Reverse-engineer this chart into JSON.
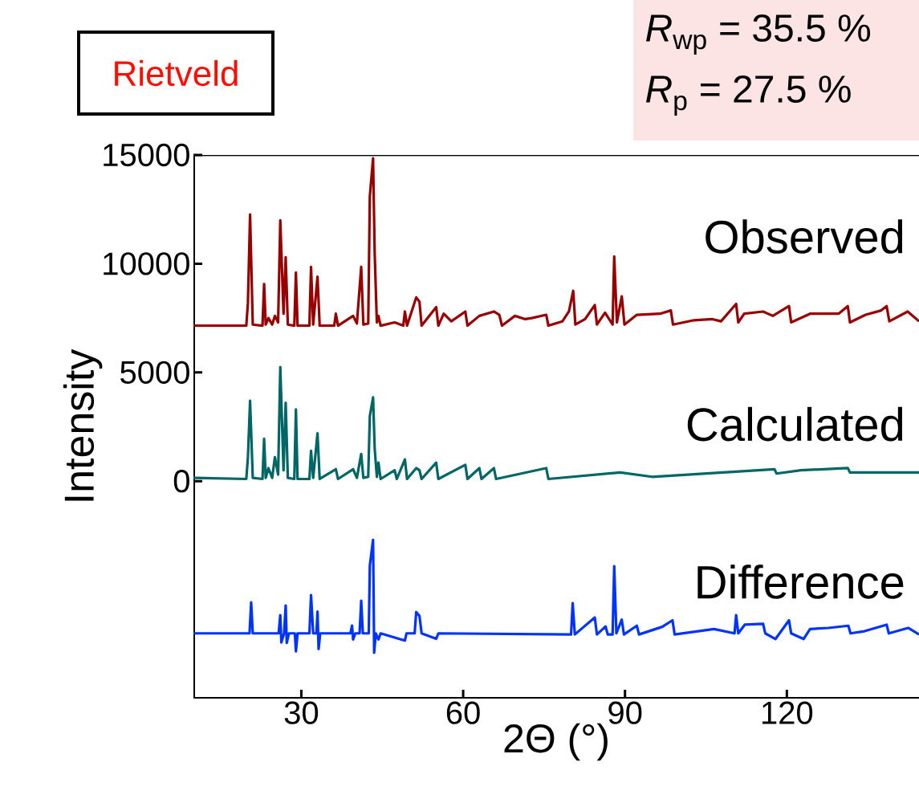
{
  "chart_data": {
    "type": "line",
    "xlabel": "2Θ (°)",
    "ylabel": "Intensity",
    "xlim": [
      10,
      144.5
    ],
    "ylim": [
      -10000,
      15000
    ],
    "xticks": [
      30,
      60,
      90,
      120
    ],
    "yticks": [
      0,
      5000,
      10000,
      15000
    ],
    "annotations": [
      "Rietveld",
      "*R*$_{wp}$ = 35.5 %",
      "*R*$_{p}$ = 27.5 %"
    ],
    "series": [
      {
        "name": "Observed",
        "color": "#990000",
        "x": [
          10,
          19.8,
          20.1,
          20.5,
          21.0,
          22.8,
          23.1,
          23.4,
          23.9,
          24.6,
          25.1,
          25.7,
          26.1,
          26.7,
          27.1,
          27.5,
          28.7,
          29.0,
          29.3,
          31.5,
          31.8,
          32.2,
          33.0,
          33.4,
          36.1,
          36.4,
          36.8,
          39.6,
          40.3,
          41.1,
          41.5,
          42.4,
          42.7,
          43.3,
          43.6,
          44.0,
          44.3,
          44.7,
          47.3,
          48.9,
          49.2,
          49.6,
          51.3,
          51.9,
          52.3,
          55.0,
          55.4,
          56.4,
          57.8,
          60.4,
          60.8,
          63.0,
          65.7,
          66.7,
          67.2,
          69.6,
          71.5,
          72.7,
          75.4,
          75.8,
          78.4,
          79.6,
          80.4,
          80.8,
          82.6,
          84.4,
          84.8,
          86.3,
          87.7,
          88.0,
          88.5,
          89.4,
          89.9,
          92.2,
          96.5,
          98.5,
          98.9,
          102.8,
          106.2,
          107.8,
          110.6,
          111.0,
          112.1,
          115.6,
          117.4,
          120.4,
          120.8,
          124.3,
          125.9,
          127.6,
          129.6,
          131.3,
          131.7,
          134.6,
          137.5,
          138.5,
          139.0,
          142.4,
          144.5
        ],
        "values": [
          7150,
          7150,
          8200,
          12260,
          7200,
          7150,
          9070,
          7200,
          7500,
          7200,
          7600,
          7300,
          12000,
          7700,
          10300,
          7200,
          7150,
          9600,
          7150,
          7150,
          9850,
          7200,
          9400,
          7150,
          7150,
          7700,
          7150,
          7600,
          7250,
          9850,
          7200,
          7250,
          13100,
          14850,
          10500,
          7300,
          7600,
          7150,
          7300,
          7150,
          7800,
          7150,
          8450,
          8250,
          7150,
          8000,
          7150,
          7700,
          7350,
          7800,
          7150,
          7600,
          7800,
          7650,
          7150,
          7600,
          7450,
          7500,
          7650,
          7150,
          7350,
          7800,
          8750,
          7200,
          7450,
          8100,
          7200,
          7750,
          7200,
          10330,
          7300,
          8500,
          7200,
          7650,
          7700,
          7850,
          7200,
          7400,
          7450,
          7350,
          8150,
          7300,
          7700,
          7800,
          7600,
          8050,
          7300,
          7700,
          7700,
          7700,
          7700,
          8050,
          7300,
          7650,
          7850,
          8050,
          7350,
          7800,
          7350
        ]
      },
      {
        "name": "Calculated",
        "color": "#006666",
        "x": [
          10,
          19.8,
          20.1,
          20.5,
          21.0,
          22.8,
          23.1,
          23.4,
          23.9,
          24.6,
          25.1,
          25.7,
          26.1,
          26.7,
          27.1,
          27.5,
          28.7,
          29.0,
          29.3,
          31.5,
          31.8,
          32.2,
          33.0,
          33.4,
          36.4,
          36.8,
          39.6,
          40.3,
          41.1,
          41.5,
          42.4,
          42.7,
          43.3,
          43.6,
          44.0,
          44.3,
          44.7,
          47.3,
          47.7,
          49.2,
          49.6,
          51.3,
          51.9,
          52.3,
          55.0,
          55.4,
          60.4,
          60.8,
          63.0,
          63.4,
          65.7,
          66.1,
          75.4,
          75.8,
          89.1,
          95.0,
          117.7,
          118.1,
          122.6,
          131.3,
          131.7,
          144.5
        ],
        "values": [
          150,
          100,
          1100,
          3700,
          150,
          100,
          1950,
          150,
          600,
          150,
          1100,
          300,
          5250,
          500,
          3600,
          150,
          100,
          3300,
          100,
          100,
          1400,
          150,
          2200,
          100,
          550,
          100,
          550,
          150,
          1250,
          150,
          200,
          3000,
          3850,
          1500,
          200,
          850,
          100,
          500,
          100,
          1000,
          100,
          600,
          500,
          100,
          850,
          100,
          750,
          100,
          600,
          100,
          600,
          100,
          600,
          100,
          400,
          200,
          550,
          350,
          500,
          600,
          400,
          400
        ]
      },
      {
        "name": "Difference",
        "color": "#0033ff",
        "x": [
          10,
          20.4,
          20.7,
          21.0,
          25.8,
          26.1,
          26.3,
          26.8,
          27.1,
          27.3,
          27.7,
          28.8,
          29.0,
          29.3,
          31.5,
          31.8,
          32.2,
          32.8,
          33.0,
          33.2,
          33.5,
          39.1,
          39.4,
          39.6,
          40.0,
          40.8,
          41.1,
          41.4,
          42.5,
          42.7,
          43.3,
          43.5,
          43.8,
          44.3,
          44.7,
          49.2,
          49.5,
          51.0,
          51.3,
          51.9,
          52.3,
          55.0,
          55.4,
          80.0,
          80.3,
          80.7,
          84.4,
          84.8,
          86.4,
          86.8,
          87.7,
          88.0,
          88.4,
          89.4,
          89.8,
          92.2,
          92.6,
          96.9,
          98.8,
          99.2,
          106.5,
          110.3,
          110.6,
          111.0,
          112.2,
          115.6,
          116.0,
          117.9,
          120.4,
          120.8,
          123.1,
          124.3,
          127.7,
          131.4,
          131.8,
          134.4,
          138.5,
          138.9,
          142.5,
          144.5
        ],
        "values": [
          -7000,
          -7000,
          -5570,
          -7000,
          -7000,
          -6160,
          -7420,
          -7000,
          -5720,
          -7440,
          -7000,
          -7000,
          -7830,
          -7000,
          -7000,
          -5240,
          -7000,
          -7000,
          -6000,
          -7720,
          -7000,
          -7000,
          -6640,
          -7280,
          -7000,
          -7000,
          -5500,
          -7000,
          -7000,
          -3880,
          -2700,
          -7890,
          -7000,
          -7280,
          -7000,
          -7330,
          -7000,
          -7000,
          -6020,
          -6200,
          -7000,
          -7250,
          -7000,
          -7050,
          -5610,
          -7050,
          -6270,
          -7050,
          -6680,
          -7050,
          -7050,
          -3910,
          -7000,
          -6370,
          -7050,
          -6650,
          -7050,
          -6700,
          -6400,
          -7050,
          -6800,
          -7000,
          -6160,
          -7000,
          -6600,
          -6560,
          -7000,
          -7260,
          -6400,
          -7000,
          -7260,
          -6800,
          -6750,
          -6650,
          -7000,
          -6900,
          -6600,
          -7000,
          -6750,
          -7050
        ]
      }
    ]
  }
}
